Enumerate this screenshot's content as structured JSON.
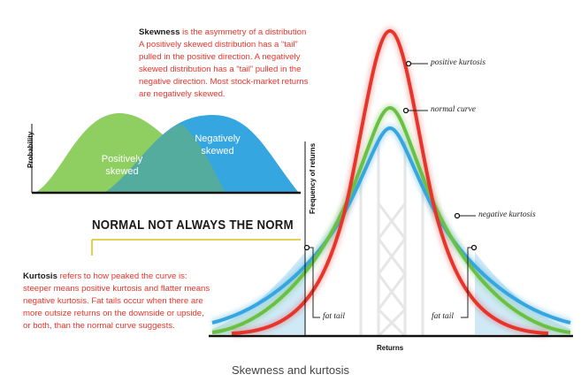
{
  "skewness": {
    "term": "Skewness",
    "lines": [
      " is the asymmetry of a distribution",
      "A positively skewed distribution has a “tail”",
      "pulled in the positive direction. A negatively",
      "skewed distribution has a “tail” pulled in the",
      "negative direction. Most stock-market returns",
      "are negatively skewed."
    ]
  },
  "kurtosis": {
    "term": "Kurtosis",
    "lines": [
      " refers to how peaked the curve is:",
      "steeper means positive kurtosis and flatter means",
      "negative kurtosis. Fat tails occur when there are",
      "more outsize returns on the downside or upside,",
      "or both, than the normal curve suggests."
    ]
  },
  "headline": "NORMAL NOT ALWAYS THE NORM",
  "left_chart": {
    "ylabel": "Probability",
    "positive_label": [
      "Positively",
      "skewed"
    ],
    "negative_label": [
      "Negatively",
      "skewed"
    ]
  },
  "right_chart": {
    "ylabel": "Frequency of returns",
    "xlabel": "Returns",
    "labels": {
      "positive": "positive kurtosis",
      "normal": "normal curve",
      "negative": "negative kurtosis",
      "fat_tail_left": "fat tail",
      "fat_tail_right": "fat tail"
    }
  },
  "caption": "Skewness and kurtosis",
  "colors": {
    "red": "#e8352b",
    "green": "#6ac045",
    "blue": "#35a6e0",
    "light_green": "#8fcf62",
    "tail_fill": "#cfe9f7"
  }
}
